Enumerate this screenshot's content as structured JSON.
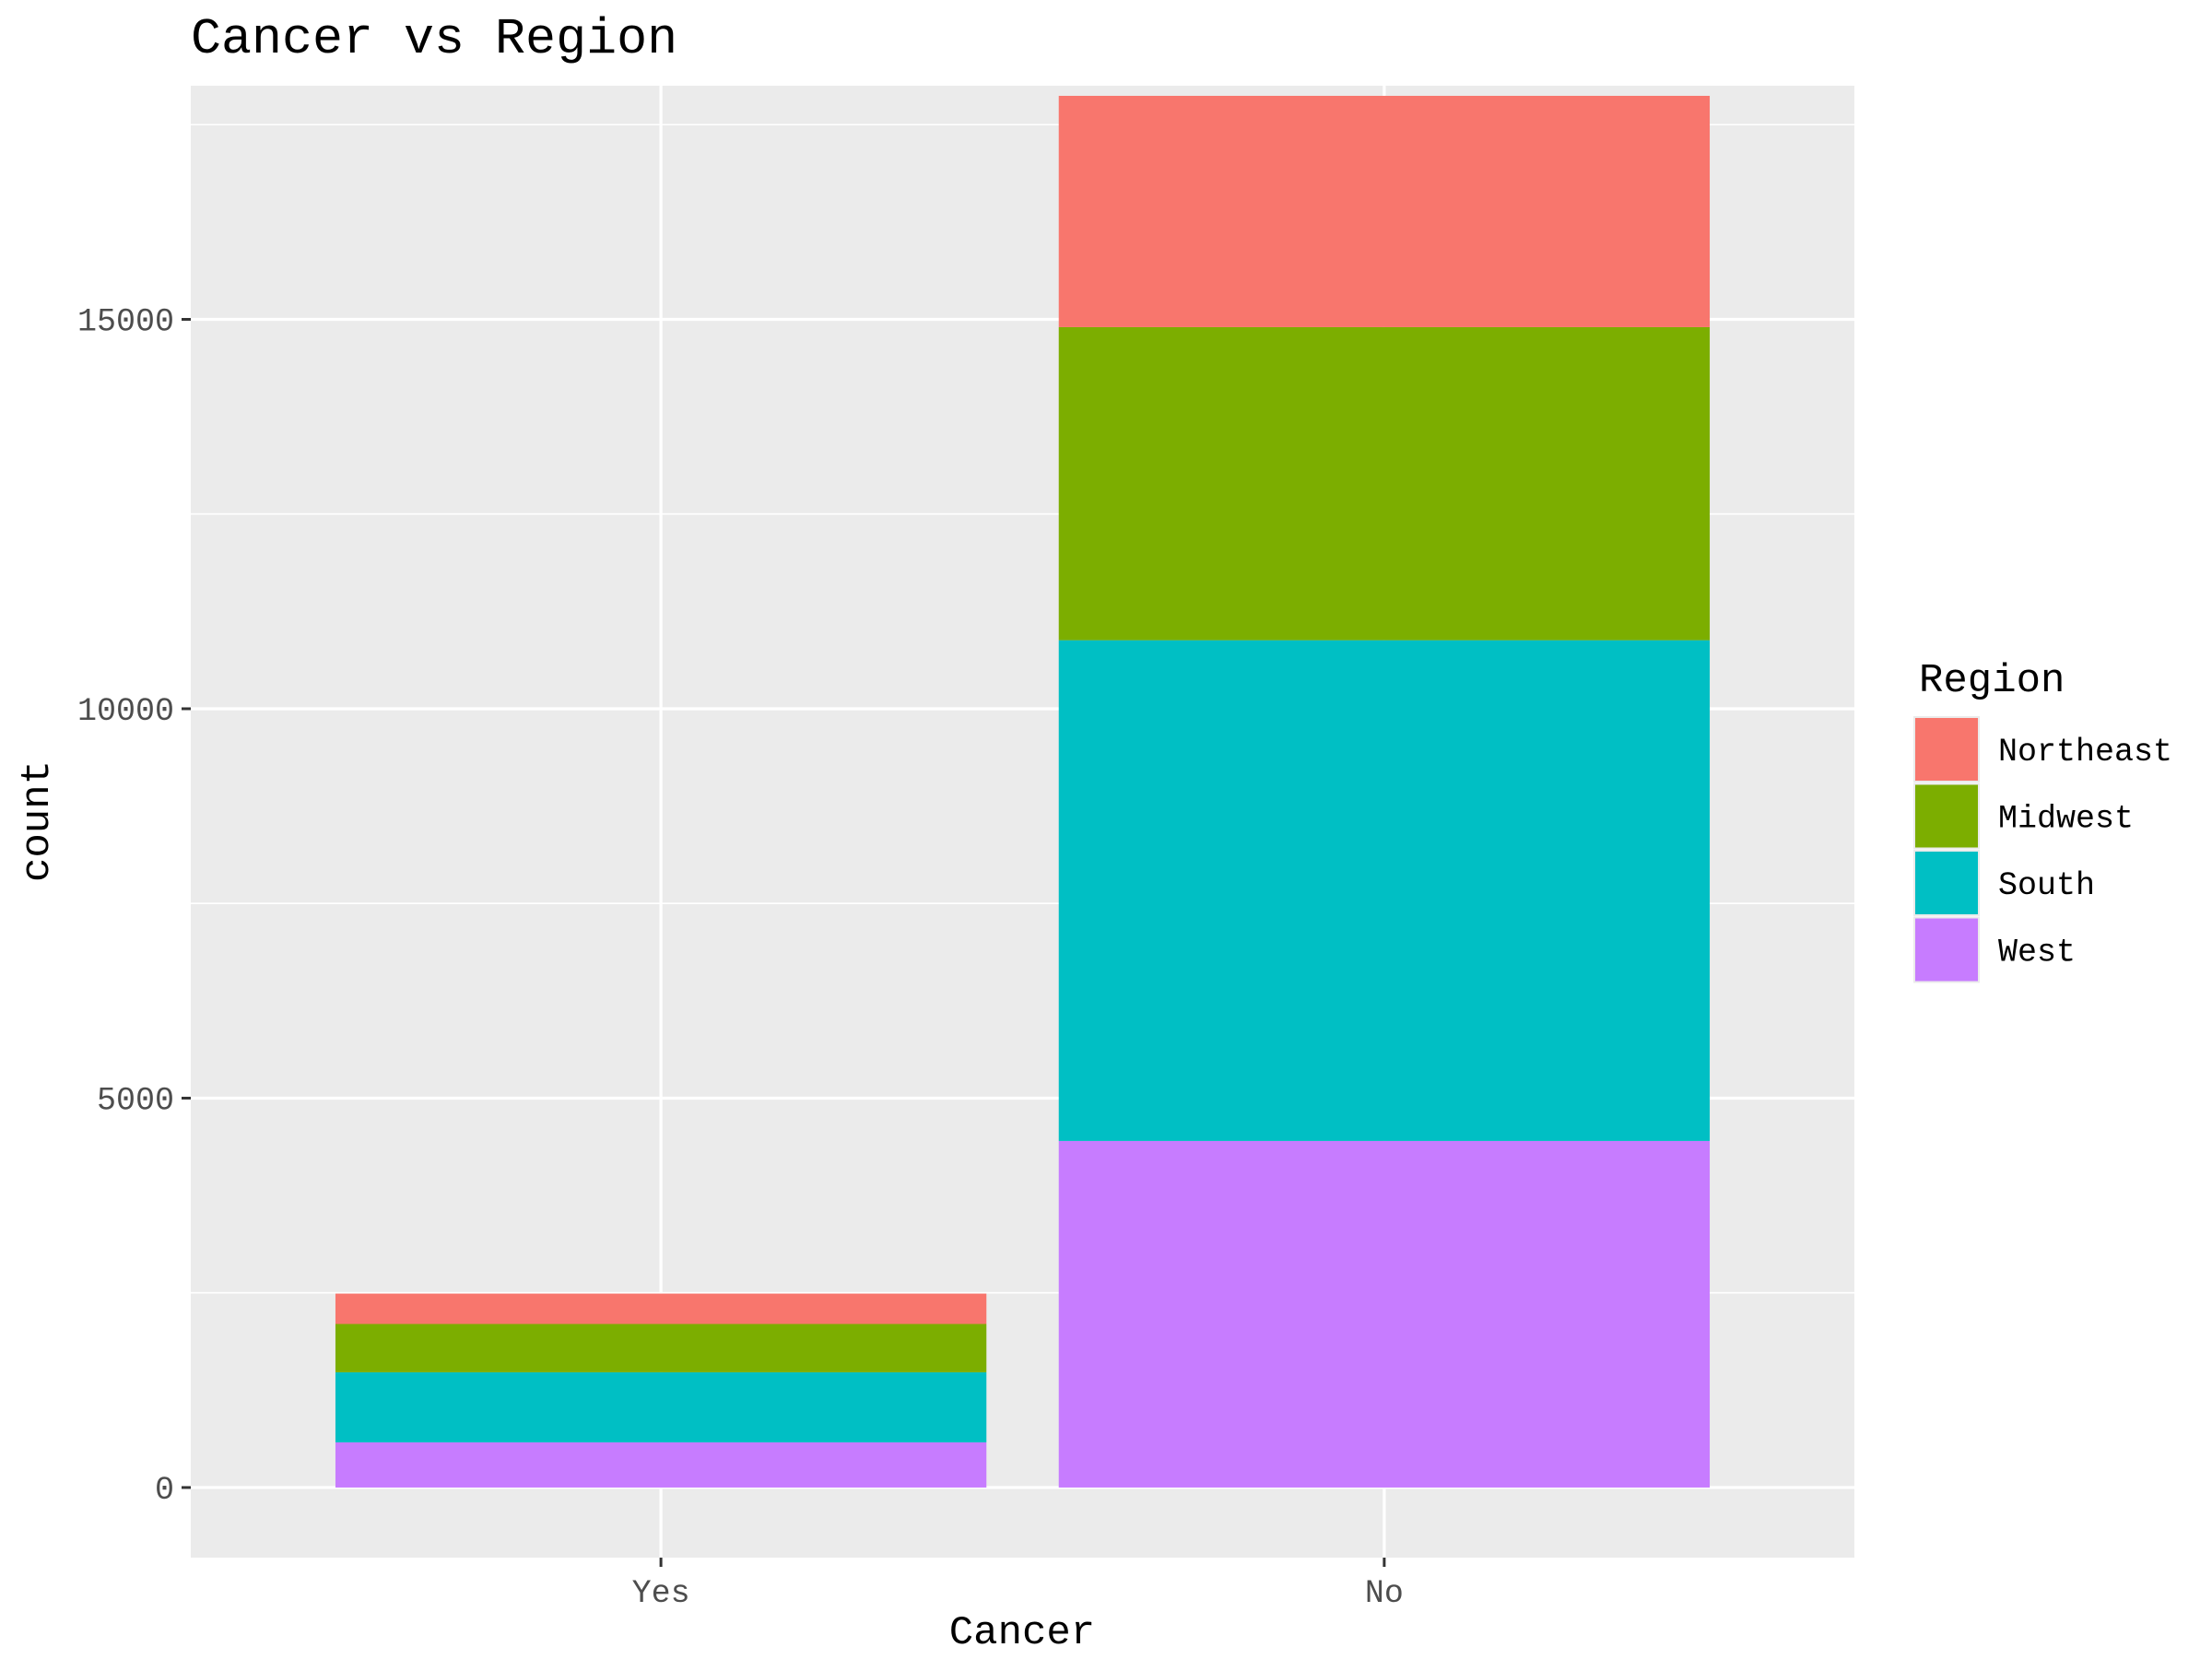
{
  "chart_data": {
    "type": "bar",
    "stacked": true,
    "title": "Cancer vs Region",
    "xlabel": "Cancer",
    "ylabel": "count",
    "categories": [
      "Yes",
      "No"
    ],
    "ylim": [
      -900,
      18000
    ],
    "yticks": [
      0,
      5000,
      10000,
      15000
    ],
    "ytick_labels": [
      "0",
      "5000",
      "10000",
      "15000"
    ],
    "grid": true,
    "legend": {
      "title": "Region",
      "position": "right"
    },
    "series": [
      {
        "name": "West",
        "color": "#C77CFF",
        "values": [
          580,
          4450
        ]
      },
      {
        "name": "South",
        "color": "#00BFC4",
        "values": [
          900,
          6430
        ]
      },
      {
        "name": "Midwest",
        "color": "#7CAE00",
        "values": [
          620,
          4020
        ]
      },
      {
        "name": "Northeast",
        "color": "#F8766D",
        "values": [
          390,
          2970
        ]
      }
    ],
    "legend_order": [
      "Northeast",
      "Midwest",
      "South",
      "West"
    ],
    "panel_background": "#EBEBEB",
    "grid_color": "#FFFFFF"
  }
}
